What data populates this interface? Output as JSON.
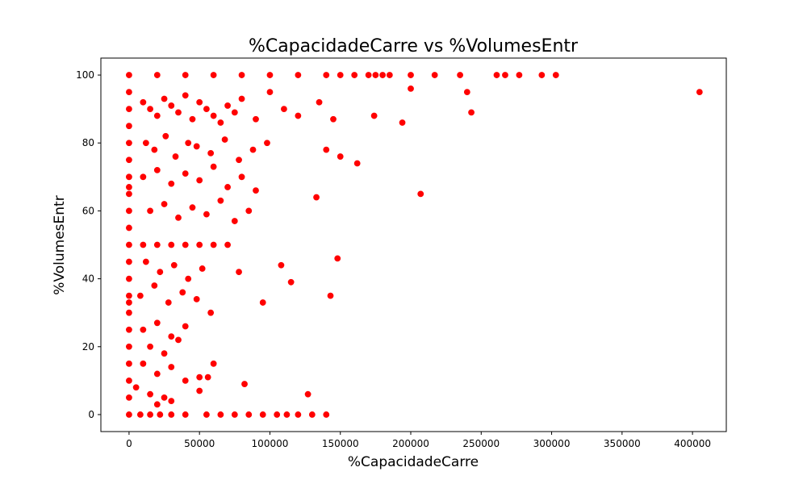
{
  "chart_data": {
    "type": "scatter",
    "title": "%CapacidadeCarre vs %VolumesEntr",
    "xlabel": "%CapacidadeCarre",
    "ylabel": "%VolumesEntr",
    "xlim": [
      -20000,
      424000
    ],
    "ylim": [
      -5,
      105
    ],
    "xticks": [
      0,
      50000,
      100000,
      150000,
      200000,
      250000,
      300000,
      350000,
      400000
    ],
    "yticks": [
      0,
      20,
      40,
      60,
      80,
      100
    ],
    "grid": false,
    "marker_color": "#ff0000",
    "marker_edge_color": "#ffffff",
    "x": [
      0,
      0,
      0,
      0,
      0,
      0,
      0,
      0,
      0,
      0,
      0,
      0,
      0,
      0,
      0,
      0,
      0,
      0,
      0,
      0,
      0,
      0,
      0,
      8000,
      15000,
      22000,
      30000,
      40000,
      55000,
      65000,
      75000,
      85000,
      95000,
      105000,
      112000,
      120000,
      130000,
      140000,
      20000,
      40000,
      60000,
      80000,
      100000,
      120000,
      140000,
      150000,
      160000,
      170000,
      175000,
      180000,
      185000,
      200000,
      217000,
      235000,
      261000,
      267000,
      277000,
      293000,
      303000,
      10000,
      15000,
      20000,
      25000,
      30000,
      35000,
      40000,
      45000,
      50000,
      55000,
      60000,
      65000,
      70000,
      75000,
      80000,
      90000,
      100000,
      110000,
      120000,
      135000,
      145000,
      12000,
      18000,
      26000,
      33000,
      42000,
      48000,
      58000,
      68000,
      78000,
      88000,
      98000,
      10000,
      20000,
      30000,
      40000,
      50000,
      60000,
      70000,
      80000,
      90000,
      15000,
      25000,
      35000,
      45000,
      55000,
      65000,
      75000,
      85000,
      10000,
      20000,
      30000,
      40000,
      50000,
      60000,
      70000,
      12000,
      22000,
      32000,
      42000,
      52000,
      8000,
      18000,
      28000,
      38000,
      48000,
      58000,
      10000,
      20000,
      30000,
      40000,
      15000,
      25000,
      35000,
      10000,
      20000,
      30000,
      40000,
      50000,
      5000,
      15000,
      25000,
      20000,
      30000,
      50000,
      60000,
      150000,
      140000,
      143000,
      127000,
      82000,
      200000,
      194000,
      174000,
      207000,
      243000,
      240000,
      405000,
      162000,
      133000,
      115000,
      148000,
      108000,
      95000,
      78000,
      56000
    ],
    "y": [
      0,
      5,
      10,
      15,
      20,
      25,
      30,
      35,
      40,
      45,
      50,
      55,
      60,
      65,
      70,
      75,
      80,
      85,
      90,
      95,
      100,
      67,
      33,
      0,
      0,
      0,
      0,
      0,
      0,
      0,
      0,
      0,
      0,
      0,
      0,
      0,
      0,
      0,
      100,
      100,
      100,
      100,
      100,
      100,
      100,
      100,
      100,
      100,
      100,
      100,
      100,
      100,
      100,
      100,
      100,
      100,
      100,
      100,
      100,
      92,
      90,
      88,
      93,
      91,
      89,
      94,
      87,
      92,
      90,
      88,
      86,
      91,
      89,
      93,
      87,
      95,
      90,
      88,
      92,
      87,
      80,
      78,
      82,
      76,
      80,
      79,
      77,
      81,
      75,
      78,
      80,
      70,
      72,
      68,
      71,
      69,
      73,
      67,
      70,
      66,
      60,
      62,
      58,
      61,
      59,
      63,
      57,
      60,
      50,
      50,
      50,
      50,
      50,
      50,
      50,
      45,
      42,
      44,
      40,
      43,
      35,
      38,
      33,
      36,
      34,
      30,
      25,
      27,
      23,
      26,
      20,
      18,
      22,
      15,
      12,
      14,
      10,
      11,
      8,
      6,
      5,
      3,
      4,
      7,
      15,
      76,
      78,
      35,
      6,
      9,
      96,
      86,
      88,
      65,
      89,
      95,
      95,
      74,
      64,
      39,
      46,
      44,
      33,
      42,
      11
    ]
  }
}
